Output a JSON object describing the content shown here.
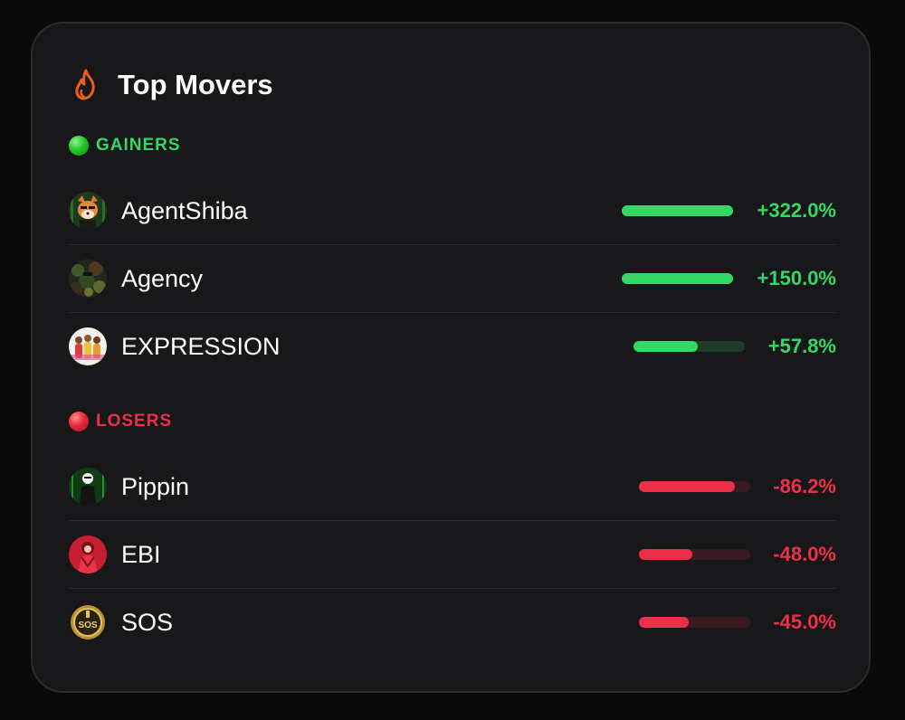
{
  "header": {
    "title": "Top Movers",
    "icon": "flame-icon",
    "icon_color": "#e8611a"
  },
  "colors": {
    "gain": "#33d865",
    "gain_track": "#1f3a26",
    "loss": "#ee2f4a",
    "loss_track": "#3a1a20"
  },
  "gainers": {
    "label": "GAINERS",
    "items": [
      {
        "name": "AgentShiba",
        "change": "+322.0%",
        "bar_fraction": 1.0,
        "avatar": "shiba-avatar-icon"
      },
      {
        "name": "Agency",
        "change": "+150.0%",
        "bar_fraction": 1.0,
        "avatar": "camo-avatar-icon"
      },
      {
        "name": "EXPRESSION",
        "change": "+57.8%",
        "bar_fraction": 0.578,
        "avatar": "group-avatar-icon"
      }
    ]
  },
  "losers": {
    "label": "LOSERS",
    "items": [
      {
        "name": "Pippin",
        "change": "-86.2%",
        "bar_fraction": 0.862,
        "avatar": "figure-avatar-icon"
      },
      {
        "name": "EBI",
        "change": "-48.0%",
        "bar_fraction": 0.48,
        "avatar": "red-figure-avatar-icon"
      },
      {
        "name": "SOS",
        "change": "-45.0%",
        "bar_fraction": 0.45,
        "avatar": "coin-avatar-icon"
      }
    ]
  }
}
